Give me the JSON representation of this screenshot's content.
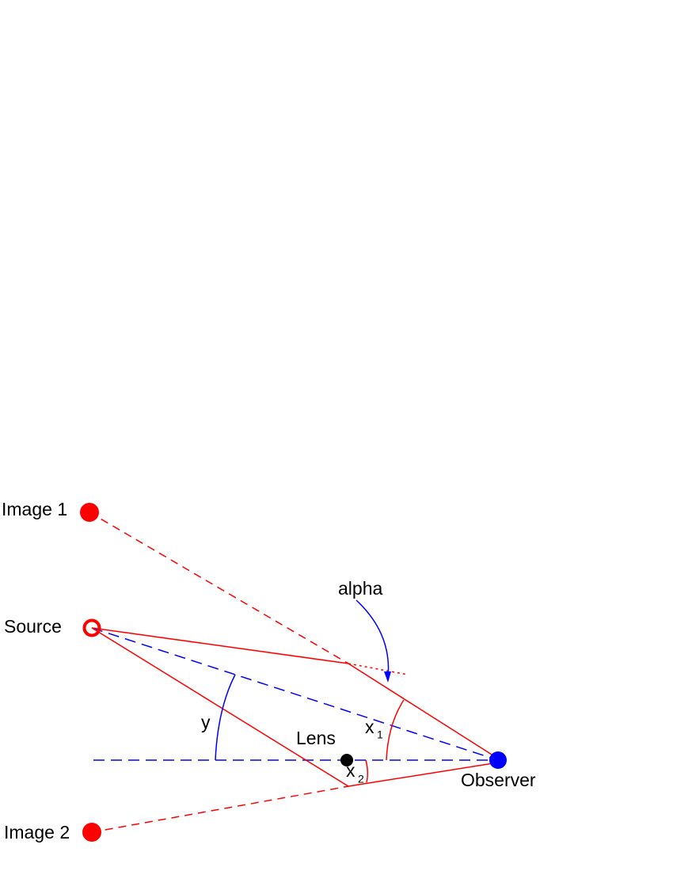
{
  "labels": {
    "image1": "Image 1",
    "source": "Source",
    "image2": "Image 2",
    "lens": "Lens",
    "observer": "Observer",
    "alpha": "alpha",
    "y": "y",
    "x1": {
      "main": "x",
      "sub": "1"
    },
    "x2": {
      "main": "x",
      "sub": "2"
    }
  }
}
